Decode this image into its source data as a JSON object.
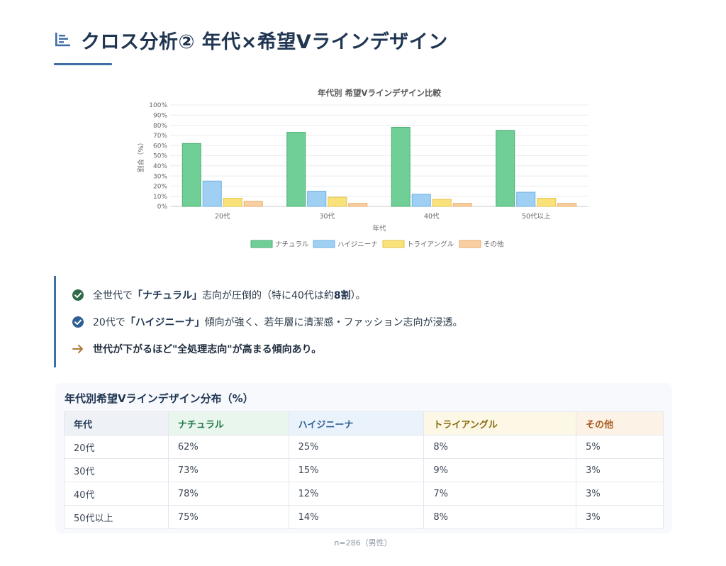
{
  "page": {
    "title": "クロス分析② 年代×希望Vラインデザイン",
    "icon": "bar-chart-icon"
  },
  "chart_data": {
    "type": "bar",
    "title": "年代別 希望Vラインデザイン比較",
    "xlabel": "年代",
    "ylabel": "割合（%）",
    "ylim": [
      0,
      100
    ],
    "yticks": [
      "0%",
      "10%",
      "20%",
      "30%",
      "40%",
      "50%",
      "60%",
      "70%",
      "80%",
      "90%",
      "100%"
    ],
    "categories": [
      "20代",
      "30代",
      "40代",
      "50代以上"
    ],
    "series": [
      {
        "name": "ナチュラル",
        "values": [
          62,
          73,
          78,
          75
        ],
        "color": "#6fcf97",
        "stroke": "#4cae74"
      },
      {
        "name": "ハイジニーナ",
        "values": [
          25,
          15,
          12,
          14
        ],
        "color": "#9fd0f3",
        "stroke": "#6cb0e3"
      },
      {
        "name": "トライアングル",
        "values": [
          8,
          9,
          7,
          8
        ],
        "color": "#fae27a",
        "stroke": "#e2c34c"
      },
      {
        "name": "その他",
        "values": [
          5,
          3,
          3,
          3
        ],
        "color": "#f8cfa0",
        "stroke": "#e9ac6d"
      }
    ],
    "grid": true,
    "legend": "bottom"
  },
  "insights": {
    "i1": {
      "pre": "全世代で",
      "bold": "「ナチュラル」",
      "mid": "志向が圧倒的（特に40代は約",
      "bold2": "8割",
      "post": "）。",
      "icon": "check-circle-icon",
      "color": "#2f6b4a"
    },
    "i2": {
      "pre": "20代で",
      "bold": "「ハイジニーナ」",
      "post": "傾向が強く、若年層に清潔感・ファッション志向が浸透。",
      "icon": "check-circle-icon",
      "color": "#2f5f93"
    },
    "i3": {
      "text": "世代が下がるほど\"全処理志向\"が高まる傾向あり。",
      "icon": "arrow-right-icon",
      "color": "#b07a3a"
    }
  },
  "table": {
    "title": "年代別希望Vラインデザイン分布（%）",
    "headers": [
      "年代",
      "ナチュラル",
      "ハイジニーナ",
      "トライアングル",
      "その他"
    ],
    "rows": [
      [
        "20代",
        "62%",
        "25%",
        "8%",
        "5%"
      ],
      [
        "30代",
        "73%",
        "15%",
        "9%",
        "3%"
      ],
      [
        "40代",
        "78%",
        "12%",
        "7%",
        "3%"
      ],
      [
        "50代以上",
        "75%",
        "14%",
        "8%",
        "3%"
      ]
    ]
  },
  "note": "n=286（男性）"
}
